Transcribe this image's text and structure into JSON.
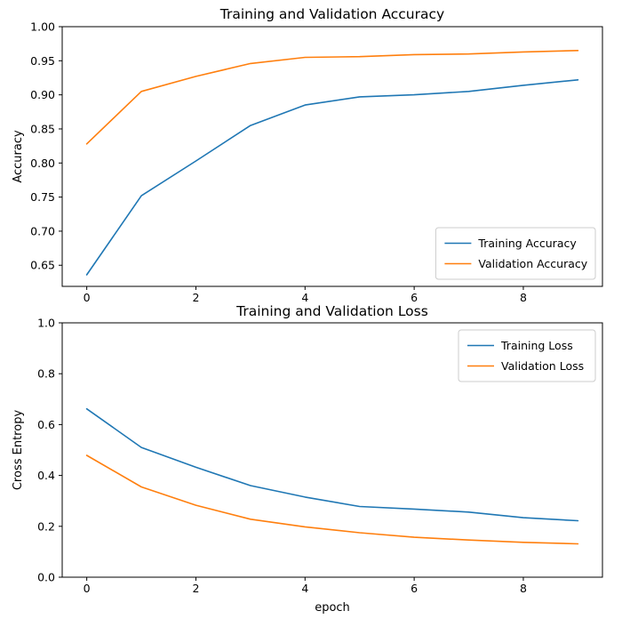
{
  "figure": {
    "background": "#ffffff",
    "axis_color": "#000000",
    "legend_border_color": "#cccccc"
  },
  "chart_data": [
    {
      "type": "line",
      "title": "Training and Validation Accuracy",
      "xlabel": "",
      "ylabel": "Accuracy",
      "x": [
        0,
        1,
        2,
        3,
        4,
        5,
        6,
        7,
        8,
        9
      ],
      "xlim": [
        -0.45,
        9.45
      ],
      "ylim": [
        0.619,
        1.0
      ],
      "xticks": [
        {
          "v": 0,
          "label": "0"
        },
        {
          "v": 2,
          "label": "2"
        },
        {
          "v": 4,
          "label": "4"
        },
        {
          "v": 6,
          "label": "6"
        },
        {
          "v": 8,
          "label": "8"
        }
      ],
      "yticks": [
        {
          "v": 0.65,
          "label": "0.65"
        },
        {
          "v": 0.7,
          "label": "0.70"
        },
        {
          "v": 0.75,
          "label": "0.75"
        },
        {
          "v": 0.8,
          "label": "0.80"
        },
        {
          "v": 0.85,
          "label": "0.85"
        },
        {
          "v": 0.9,
          "label": "0.90"
        },
        {
          "v": 0.95,
          "label": "0.95"
        },
        {
          "v": 1.0,
          "label": "1.00"
        }
      ],
      "series": [
        {
          "name": "Training Accuracy",
          "color": "#1f77b4",
          "values": [
            0.636,
            0.752,
            0.803,
            0.855,
            0.885,
            0.897,
            0.9,
            0.905,
            0.914,
            0.922
          ]
        },
        {
          "name": "Validation Accuracy",
          "color": "#ff7f0e",
          "values": [
            0.828,
            0.905,
            0.927,
            0.946,
            0.955,
            0.956,
            0.959,
            0.96,
            0.963,
            0.965
          ]
        }
      ],
      "legend": {
        "position": "lower-right",
        "entries": [
          "Training Accuracy",
          "Validation Accuracy"
        ]
      },
      "grid": false
    },
    {
      "type": "line",
      "title": "Training and Validation Loss",
      "xlabel": "epoch",
      "ylabel": "Cross Entropy",
      "x": [
        0,
        1,
        2,
        3,
        4,
        5,
        6,
        7,
        8,
        9
      ],
      "xlim": [
        -0.45,
        9.45
      ],
      "ylim": [
        0.0,
        1.0
      ],
      "xticks": [
        {
          "v": 0,
          "label": "0"
        },
        {
          "v": 2,
          "label": "2"
        },
        {
          "v": 4,
          "label": "4"
        },
        {
          "v": 6,
          "label": "6"
        },
        {
          "v": 8,
          "label": "8"
        }
      ],
      "yticks": [
        {
          "v": 0.0,
          "label": "0.0"
        },
        {
          "v": 0.2,
          "label": "0.2"
        },
        {
          "v": 0.4,
          "label": "0.4"
        },
        {
          "v": 0.6,
          "label": "0.6"
        },
        {
          "v": 0.8,
          "label": "0.8"
        },
        {
          "v": 1.0,
          "label": "1.0"
        }
      ],
      "series": [
        {
          "name": "Training Loss",
          "color": "#1f77b4",
          "values": [
            0.662,
            0.51,
            0.432,
            0.36,
            0.315,
            0.278,
            0.268,
            0.256,
            0.234,
            0.222
          ]
        },
        {
          "name": "Validation Loss",
          "color": "#ff7f0e",
          "values": [
            0.479,
            0.355,
            0.283,
            0.228,
            0.198,
            0.175,
            0.157,
            0.146,
            0.137,
            0.131
          ]
        }
      ],
      "legend": {
        "position": "upper-right",
        "entries": [
          "Training Loss",
          "Validation Loss"
        ]
      },
      "grid": false
    }
  ]
}
